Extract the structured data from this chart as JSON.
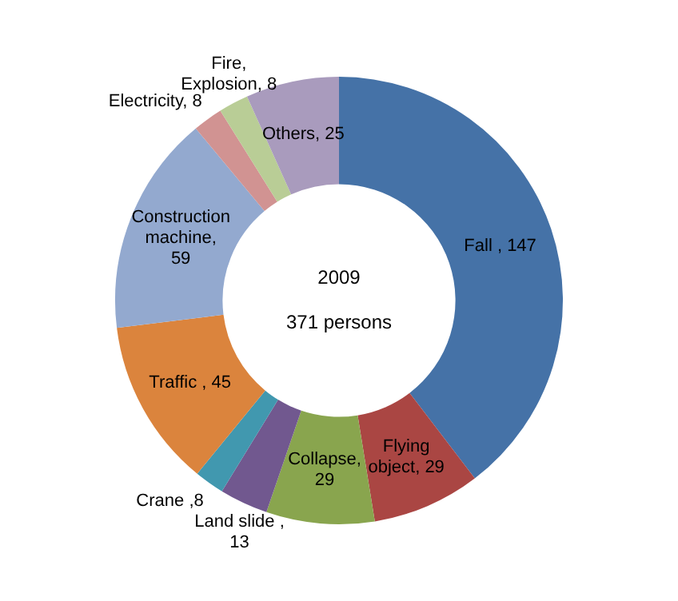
{
  "chart_data": {
    "type": "donut",
    "categories": [
      "Fall , 147",
      "Flying object, 29",
      "Collapse, 29",
      "Land slide , 13",
      "Crane ,8",
      "Traffic , 45",
      "Construction machine, 59",
      "Electricity, 8",
      "Fire, Explosion, 8",
      "Others, 25"
    ],
    "values": [
      147,
      29,
      29,
      13,
      8,
      45,
      59,
      8,
      8,
      25
    ],
    "colors": [
      "#4572a7",
      "#aa4643",
      "#89a54e",
      "#71588f",
      "#4198af",
      "#db843d",
      "#93a9cf",
      "#d19392",
      "#b9cd96",
      "#a99bbd"
    ],
    "annotations": [
      "2009",
      "371 persons"
    ],
    "legend": false
  }
}
